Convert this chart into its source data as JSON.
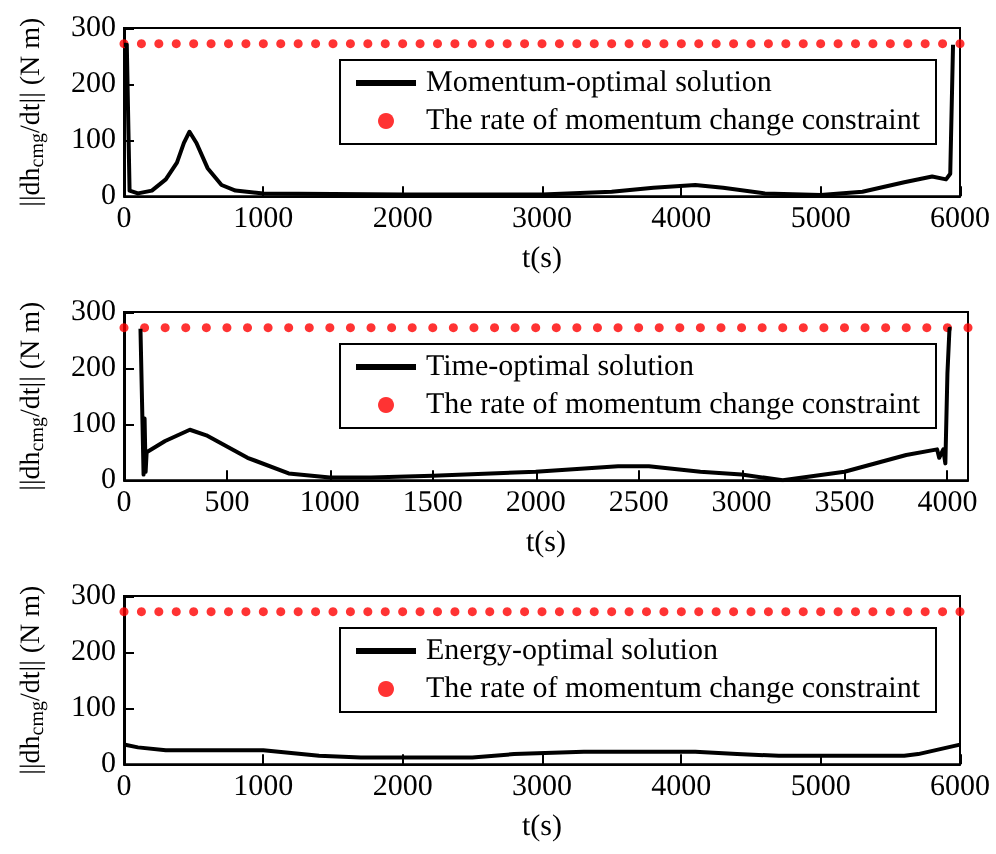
{
  "chart_data": [
    {
      "type": "line",
      "xlabel": "t(s)",
      "ylabel": "||dh$_{cmg}$/dt|| (N m)",
      "xlim": [
        0,
        6000
      ],
      "xticks": [
        0,
        1000,
        2000,
        3000,
        4000,
        5000,
        6000
      ],
      "ylim": [
        0,
        300
      ],
      "yticks": [
        0,
        100,
        200,
        300
      ],
      "legend": "top right",
      "grid": false,
      "series": [
        {
          "name": "Momentum-optimal solution",
          "color": "#000000",
          "marker": "none",
          "x": [
            0,
            20,
            40,
            100,
            200,
            300,
            380,
            430,
            470,
            520,
            600,
            700,
            800,
            1000,
            2000,
            3000,
            3500,
            3800,
            4100,
            4300,
            4600,
            5000,
            5300,
            5600,
            5800,
            5900,
            5930,
            5950,
            5960
          ],
          "values": [
            270,
            270,
            10,
            5,
            10,
            30,
            60,
            95,
            115,
            95,
            50,
            20,
            10,
            5,
            3,
            3,
            8,
            15,
            20,
            15,
            5,
            2,
            8,
            25,
            35,
            30,
            40,
            270,
            270
          ]
        },
        {
          "name": "The rate of momentum change constraint",
          "type": "scatter",
          "color": "#ff0000",
          "marker": "circle",
          "x": [
            0,
            125,
            250,
            375,
            500,
            625,
            750,
            875,
            1000,
            1125,
            1250,
            1375,
            1500,
            1625,
            1750,
            1875,
            2000,
            2125,
            2250,
            2375,
            2500,
            2625,
            2750,
            2875,
            3000,
            3125,
            3250,
            3375,
            3500,
            3625,
            3750,
            3875,
            4000,
            4125,
            4250,
            4375,
            4500,
            4625,
            4750,
            4875,
            5000,
            5125,
            5250,
            5375,
            5500,
            5625,
            5750,
            5875,
            6000
          ],
          "values": [
            272,
            272,
            272,
            272,
            272,
            272,
            272,
            272,
            272,
            272,
            272,
            272,
            272,
            272,
            272,
            272,
            272,
            272,
            272,
            272,
            272,
            272,
            272,
            272,
            272,
            272,
            272,
            272,
            272,
            272,
            272,
            272,
            272,
            272,
            272,
            272,
            272,
            272,
            272,
            272,
            272,
            272,
            272,
            272,
            272,
            272,
            272,
            272,
            272
          ]
        }
      ]
    },
    {
      "type": "line",
      "xlabel": "t(s)",
      "ylabel": "||dh$_{cmg}$/dt|| (N m)",
      "xlim": [
        0,
        4100
      ],
      "xticks": [
        0,
        500,
        1000,
        1500,
        2000,
        2500,
        3000,
        3500,
        4000
      ],
      "ylim": [
        0,
        300
      ],
      "yticks": [
        0,
        100,
        200,
        300
      ],
      "legend": "top right",
      "grid": false,
      "series": [
        {
          "name": "Time-optimal solution",
          "color": "#000000",
          "marker": "none",
          "x": [
            80,
            90,
            95,
            100,
            105,
            110,
            200,
            320,
            400,
            600,
            800,
            1000,
            1200,
            1500,
            2000,
            2400,
            2550,
            2800,
            3000,
            3200,
            3500,
            3800,
            3950,
            3960,
            3980,
            3990,
            4000,
            4010,
            4020
          ],
          "values": [
            270,
            100,
            10,
            110,
            15,
            50,
            70,
            90,
            80,
            40,
            12,
            5,
            5,
            8,
            15,
            25,
            25,
            15,
            10,
            0,
            15,
            45,
            55,
            40,
            55,
            30,
            190,
            270,
            270
          ]
        },
        {
          "name": "The rate of momentum change constraint",
          "type": "scatter",
          "color": "#ff0000",
          "marker": "circle",
          "x": [
            0,
            100,
            200,
            300,
            400,
            500,
            600,
            700,
            800,
            900,
            1000,
            1100,
            1200,
            1300,
            1400,
            1500,
            1600,
            1700,
            1800,
            1900,
            2000,
            2100,
            2200,
            2300,
            2400,
            2500,
            2600,
            2700,
            2800,
            2900,
            3000,
            3100,
            3200,
            3300,
            3400,
            3500,
            3600,
            3700,
            3800,
            3900,
            4000,
            4100
          ],
          "values": [
            272,
            272,
            272,
            272,
            272,
            272,
            272,
            272,
            272,
            272,
            272,
            272,
            272,
            272,
            272,
            272,
            272,
            272,
            272,
            272,
            272,
            272,
            272,
            272,
            272,
            272,
            272,
            272,
            272,
            272,
            272,
            272,
            272,
            272,
            272,
            272,
            272,
            272,
            272,
            272,
            272,
            272
          ]
        }
      ]
    },
    {
      "type": "line",
      "xlabel": "t(s)",
      "ylabel": "||dh$_{cmg}$/dt|| (N m)",
      "xlim": [
        0,
        6000
      ],
      "xticks": [
        0,
        1000,
        2000,
        3000,
        4000,
        5000,
        6000
      ],
      "ylim": [
        0,
        300
      ],
      "yticks": [
        0,
        100,
        200,
        300
      ],
      "legend": "top right",
      "grid": false,
      "series": [
        {
          "name": "Energy-optimal solution",
          "color": "#000000",
          "marker": "none",
          "x": [
            0,
            100,
            300,
            1000,
            1200,
            1400,
            1700,
            2500,
            2800,
            3300,
            4100,
            4400,
            4700,
            5600,
            5700,
            6000
          ],
          "values": [
            35,
            30,
            25,
            25,
            20,
            15,
            12,
            12,
            18,
            22,
            22,
            18,
            15,
            15,
            18,
            35
          ]
        },
        {
          "name": "The rate of momentum change constraint",
          "type": "scatter",
          "color": "#ff0000",
          "marker": "circle",
          "x": [
            0,
            125,
            250,
            375,
            500,
            625,
            750,
            875,
            1000,
            1125,
            1250,
            1375,
            1500,
            1625,
            1750,
            1875,
            2000,
            2125,
            2250,
            2375,
            2500,
            2625,
            2750,
            2875,
            3000,
            3125,
            3250,
            3375,
            3500,
            3625,
            3750,
            3875,
            4000,
            4125,
            4250,
            4375,
            4500,
            4625,
            4750,
            4875,
            5000,
            5125,
            5250,
            5375,
            5500,
            5625,
            5750,
            5875,
            6000
          ],
          "values": [
            272,
            272,
            272,
            272,
            272,
            272,
            272,
            272,
            272,
            272,
            272,
            272,
            272,
            272,
            272,
            272,
            272,
            272,
            272,
            272,
            272,
            272,
            272,
            272,
            272,
            272,
            272,
            272,
            272,
            272,
            272,
            272,
            272,
            272,
            272,
            272,
            272,
            272,
            272,
            272,
            272,
            272,
            272,
            272,
            272,
            272,
            272,
            272,
            272
          ]
        }
      ]
    }
  ]
}
